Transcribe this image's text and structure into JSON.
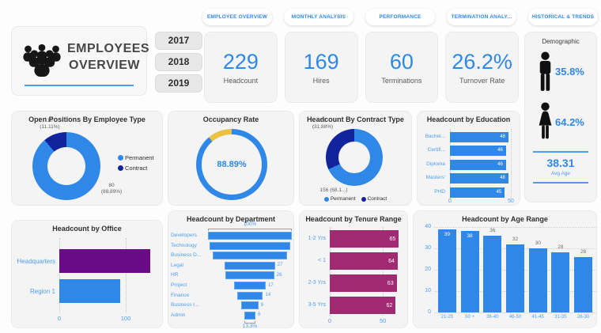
{
  "title_card": {
    "line1": "EMPLOYEES",
    "line2": "OVERVIEW"
  },
  "year_filters": [
    "2017",
    "2018",
    "2019"
  ],
  "nav_tabs": [
    "EMPLOYEE OVERVIEW",
    "MONTHLY ANALYSIS",
    "PERFORMANCE",
    "TERMINATION ANALY...",
    "HISTORICAL & TRENDS"
  ],
  "kpis": [
    {
      "value": "229",
      "label": "Headcount"
    },
    {
      "value": "169",
      "label": "Hires"
    },
    {
      "value": "60",
      "label": "Terminations"
    },
    {
      "value": "26.2%",
      "label": "Turnover Rate"
    }
  ],
  "demographic": {
    "title": "Demographic",
    "male_pct": "35.8%",
    "female_pct": "64.2%",
    "avg_age": "38.31",
    "avg_age_label": "Avg Age"
  },
  "colors": {
    "blue": "#2f88e8",
    "navy": "#12239e",
    "yellow": "#e9c144",
    "magenta": "#a02b73",
    "purple": "#690a87",
    "label_blue": "#4f9df0",
    "value_gray": "#6d6d6d"
  },
  "chart_data": [
    {
      "type": "pie",
      "title": "Open Positions By Employee Type",
      "slices": [
        {
          "name": "Permanent",
          "value": 80,
          "pct": "88.89%",
          "color": "#2f88e8"
        },
        {
          "name": "Contract",
          "value": 10,
          "pct": "11.11%",
          "color": "#12239e"
        }
      ],
      "point_labels": [
        [
          "10",
          "(11.11%)"
        ],
        [
          "80",
          "(88.89%)"
        ]
      ],
      "legend": [
        "Permanent",
        "Contract"
      ],
      "legend_position": "right"
    },
    {
      "type": "pie",
      "title": "Occupancy Rate",
      "slices": [
        {
          "name": "Occupied",
          "value": 88.89,
          "color": "#2f88e8"
        },
        {
          "name": "Vacant",
          "value": 11.11,
          "color": "#e9c144"
        }
      ],
      "center_label": "88.89%"
    },
    {
      "type": "pie",
      "title": "Headcount By Contract Type",
      "slices": [
        {
          "name": "Permanent",
          "value": 156,
          "pct": "68.1%",
          "color": "#2f88e8"
        },
        {
          "name": "Contract",
          "value": 73,
          "pct": "31.88%",
          "color": "#12239e"
        }
      ],
      "point_labels": [
        [
          "73",
          "(31.88%)"
        ],
        [
          "156 (68.1...)"
        ]
      ],
      "legend": [
        "Permanent",
        "Contract"
      ],
      "legend_position": "bottom"
    },
    {
      "type": "bar",
      "title": "Headcount by Education",
      "categories": [
        "Bachel...",
        "Certifi...",
        "Diploma",
        "Masters'",
        "PHD"
      ],
      "values": [
        48,
        46,
        46,
        48,
        45
      ],
      "xlim": [
        0,
        50
      ],
      "xticks": [
        "0",
        "50"
      ],
      "bar_colors": [
        "#2f88e8",
        "#2f88e8",
        "#2f88e8",
        "#2f88e8",
        "#2f88e8"
      ],
      "show_values": true
    },
    {
      "type": "bar",
      "title": "Headcount by Office",
      "categories": [
        "Headquarters",
        "Region 1"
      ],
      "values": [
        137,
        92
      ],
      "xlim": [
        0,
        150
      ],
      "xticks": [
        "0",
        "100"
      ],
      "bar_colors": [
        "#690a87",
        "#2f88e8"
      ],
      "show_values": false
    },
    {
      "type": "bar",
      "title": "Headcount by Department",
      "subtype": "funnel",
      "categories": [
        "Developers",
        "Technology",
        "Business D...",
        "Legal",
        "HR",
        "Project",
        "Finance",
        "Business I...",
        "Admin"
      ],
      "values": [
        45,
        43,
        40,
        27,
        26,
        17,
        14,
        9,
        6
      ],
      "value_labels": [
        "",
        "",
        "",
        "27",
        "26",
        "17",
        "14",
        "9",
        "6"
      ],
      "top_label": "100%",
      "bottom_label": "13.3%"
    },
    {
      "type": "bar",
      "title": "Headcount by Tenure Range",
      "categories": [
        "1-2 Yrs",
        "< 1",
        "2-3 Yrs",
        "3-5 Yrs"
      ],
      "values": [
        65,
        64,
        63,
        62
      ],
      "xlim": [
        0,
        70
      ],
      "xticks": [
        "0",
        "50"
      ],
      "bar_colors": [
        "#a02b73",
        "#a02b73",
        "#a02b73",
        "#a02b73"
      ],
      "show_values": true
    },
    {
      "type": "bar",
      "title": "Headcount by Age Range",
      "categories": [
        "21-25",
        "50 +",
        "36-40",
        "46-50",
        "41-45",
        "31-35",
        "26-30"
      ],
      "values": [
        39,
        38,
        36,
        32,
        30,
        28,
        26
      ],
      "ylim": [
        0,
        40
      ],
      "yticks": [
        "0",
        "10",
        "20",
        "30",
        "40"
      ],
      "bar_color": "#2f88e8",
      "labels_inside_count": 2
    }
  ]
}
